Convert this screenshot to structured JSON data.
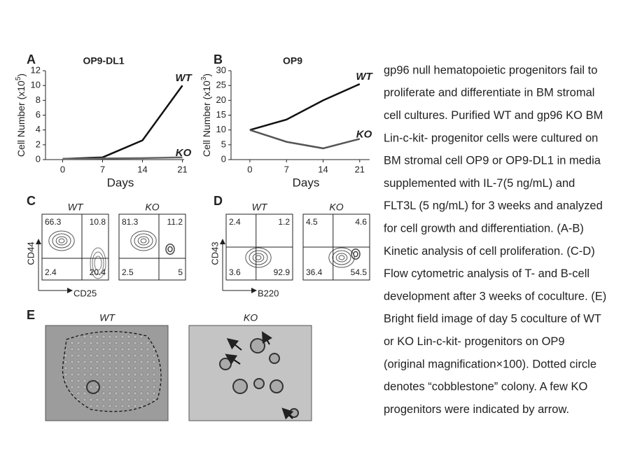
{
  "chart_data": [
    {
      "type": "line",
      "label": "A",
      "title": "OP9-DL1",
      "ylabel": [
        "Cell Number (x10",
        "5",
        ")"
      ],
      "xlabel": "Days",
      "x": [
        0,
        7,
        14,
        21
      ],
      "xlim": [
        -3,
        21.3
      ],
      "xticks": [
        0,
        7,
        14,
        21
      ],
      "ylim": [
        0,
        12
      ],
      "yticks": [
        0,
        2,
        4,
        6,
        8,
        10,
        12
      ],
      "series": [
        {
          "name": "WT",
          "color": "#111111",
          "values": [
            0.1,
            0.3,
            2.6,
            10
          ]
        },
        {
          "name": "KO",
          "color": "#666666",
          "values": [
            0.1,
            0.15,
            0.2,
            0.3
          ]
        }
      ]
    },
    {
      "type": "line",
      "label": "B",
      "title": "OP9",
      "ylabel": [
        "Cell Number (x10",
        "3",
        ")"
      ],
      "xlabel": "Days",
      "x": [
        0,
        7,
        14,
        21
      ],
      "xlim": [
        -3.6,
        22.9
      ],
      "xticks": [
        0,
        7,
        14,
        21
      ],
      "ylim": [
        0,
        30
      ],
      "yticks": [
        0,
        5,
        10,
        15,
        20,
        25,
        30
      ],
      "series": [
        {
          "name": "WT",
          "color": "#111111",
          "values": [
            10,
            13.5,
            20,
            25.5
          ]
        },
        {
          "name": "KO",
          "color": "#555555",
          "values": [
            10,
            6,
            3.8,
            7
          ]
        }
      ]
    }
  ],
  "flow": [
    {
      "label": "C",
      "yaxis": "CD44",
      "xaxis": "CD25",
      "plots": [
        {
          "name": "WT",
          "quadrants": [
            66.3,
            10.8,
            2.4,
            20.4
          ]
        },
        {
          "name": "KO",
          "quadrants": [
            81.3,
            11.2,
            2.5,
            5
          ]
        }
      ]
    },
    {
      "label": "D",
      "yaxis": "CD43",
      "xaxis": "B220",
      "plots": [
        {
          "name": "WT",
          "quadrants": [
            2.4,
            1.2,
            3.6,
            92.9
          ]
        },
        {
          "name": "KO",
          "quadrants": [
            4.5,
            4.6,
            36.4,
            54.5
          ]
        }
      ]
    }
  ],
  "images": {
    "label": "E",
    "names": [
      "WT",
      "KO"
    ]
  },
  "caption": [
    "gp96 null hematopoietic progenitors fail to",
    "proliferate and differentiate in BM stromal",
    "cell cultures. Purified WT and gp96 KO BM",
    "Lin-c-kit- progenitor cells were cultured on",
    "BM stromal cell OP9 or OP9-DL1 in media",
    "supplemented with IL-7(5 ng/mL) and",
    "FLT3L (5 ng/mL) for 3 weeks and analyzed",
    "for cell growth and differentiation. (A-B)",
    "Kinetic analysis of cell proliferation. (C-D)",
    "Flow cytometric analysis of T- and B-cell",
    "development after 3 weeks of coculture. (E)",
    "Bright field image of day 5 coculture of WT",
    "or KO Lin-c-kit- progenitors on OP9",
    "(original magnification×100). Dotted circle",
    "denotes “cobblestone” colony. A few KO",
    "progenitors were indicated by arrow."
  ]
}
